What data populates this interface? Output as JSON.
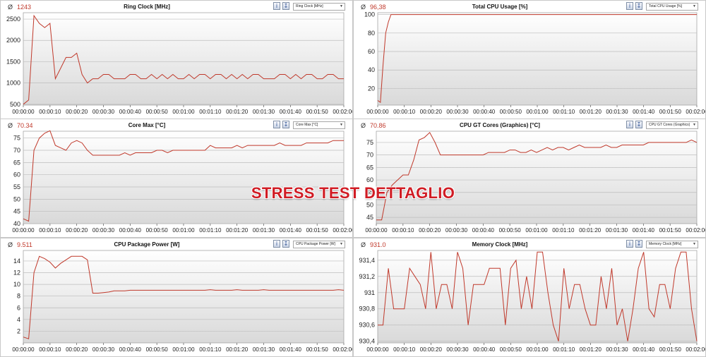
{
  "watermark": "STRESS TEST DETTAGLIO",
  "avg_symbol": "Ø",
  "x_ticks": [
    "00:00:00",
    "00:00:10",
    "00:00:20",
    "00:00:30",
    "00:00:40",
    "00:00:50",
    "00:01:00",
    "00:01:10",
    "00:01:20",
    "00:01:30",
    "00:01:40",
    "00:01:50",
    "00:02:00"
  ],
  "colors": {
    "line": "#c0392b",
    "grid": "#bdbdbd",
    "avg": "#c0392b"
  },
  "icons": [
    "info-icon",
    "export-icon",
    "dropdown-arrow-icon"
  ],
  "panels": [
    {
      "title": "Ring Clock [MHz]",
      "avg": "1243",
      "select": "Ring Clock [MHz]"
    },
    {
      "title": "Total CPU Usage [%]",
      "avg": "96,38",
      "select": "Total CPU Usage [%]"
    },
    {
      "title": "Core Max [°C]",
      "avg": "70.34",
      "select": "Core Max [°C]"
    },
    {
      "title": "CPU GT Cores (Graphics) [°C]",
      "avg": "70.86",
      "select": "CPU GT Cores (Graphics)"
    },
    {
      "title": "CPU Package Power [W]",
      "avg": "9.511",
      "select": "CPU Package Power [W]"
    },
    {
      "title": "Memory Clock [MHz]",
      "avg": "931.0",
      "select": "Memory Clock [MHz]"
    }
  ],
  "chart_data": [
    {
      "type": "line",
      "title": "Ring Clock [MHz]",
      "ylim": [
        480,
        2650
      ],
      "yticks": [
        500,
        1000,
        1500,
        2000,
        2500
      ],
      "ytick_labels": [
        "500",
        "1000",
        "1500",
        "2000",
        "2500"
      ],
      "xlim": [
        0,
        120
      ],
      "x": [
        0,
        2,
        4,
        6,
        8,
        10,
        12,
        14,
        16,
        18,
        20,
        22,
        24,
        26,
        28,
        30,
        32,
        34,
        36,
        38,
        40,
        42,
        44,
        46,
        48,
        50,
        52,
        54,
        56,
        58,
        60,
        62,
        64,
        66,
        68,
        70,
        72,
        74,
        76,
        78,
        80,
        82,
        84,
        86,
        88,
        90,
        92,
        94,
        96,
        98,
        100,
        102,
        104,
        106,
        108,
        110,
        112,
        114,
        116,
        118,
        120
      ],
      "y": [
        500,
        600,
        2580,
        2400,
        2300,
        2400,
        1100,
        1350,
        1600,
        1600,
        1700,
        1200,
        1000,
        1100,
        1100,
        1200,
        1200,
        1100,
        1100,
        1100,
        1200,
        1200,
        1100,
        1100,
        1200,
        1100,
        1200,
        1100,
        1200,
        1100,
        1100,
        1200,
        1100,
        1200,
        1200,
        1100,
        1200,
        1200,
        1100,
        1200,
        1100,
        1200,
        1100,
        1200,
        1200,
        1100,
        1100,
        1100,
        1200,
        1200,
        1100,
        1200,
        1100,
        1200,
        1200,
        1100,
        1100,
        1200,
        1200,
        1100,
        1100
      ]
    },
    {
      "type": "line",
      "title": "Total CPU Usage [%]",
      "ylim": [
        2,
        102
      ],
      "yticks": [
        20,
        40,
        60,
        80,
        100
      ],
      "ytick_labels": [
        "20",
        "40",
        "60",
        "80",
        "100"
      ],
      "xlim": [
        0,
        120
      ],
      "x": [
        0,
        1,
        2,
        3,
        4,
        5,
        6,
        60,
        120
      ],
      "y": [
        7,
        5,
        45,
        80,
        92,
        100,
        100,
        100,
        100
      ]
    },
    {
      "type": "line",
      "title": "Core Max [°C]",
      "ylim": [
        40,
        77.8
      ],
      "yticks": [
        40,
        45,
        50,
        55,
        60,
        65,
        70,
        75
      ],
      "ytick_labels": [
        "40",
        "45",
        "50",
        "55",
        "60",
        "65",
        "70",
        "75"
      ],
      "xlim": [
        0,
        120
      ],
      "x": [
        0,
        2,
        4,
        6,
        8,
        10,
        12,
        14,
        16,
        18,
        20,
        22,
        24,
        26,
        28,
        30,
        32,
        34,
        36,
        38,
        40,
        42,
        44,
        46,
        48,
        50,
        52,
        54,
        56,
        58,
        60,
        62,
        64,
        66,
        68,
        70,
        72,
        74,
        76,
        78,
        80,
        82,
        84,
        86,
        88,
        90,
        92,
        94,
        96,
        98,
        100,
        102,
        104,
        106,
        108,
        110,
        112,
        114,
        116,
        118,
        120
      ],
      "y": [
        42,
        41,
        70,
        75,
        77,
        78,
        72,
        71,
        70,
        73,
        74,
        73,
        70,
        68,
        68,
        68,
        68,
        68,
        68,
        69,
        68,
        69,
        69,
        69,
        69,
        70,
        70,
        69,
        70,
        70,
        70,
        70,
        70,
        70,
        70,
        72,
        71,
        71,
        71,
        71,
        72,
        71,
        72,
        72,
        72,
        72,
        72,
        72,
        73,
        72,
        72,
        72,
        72,
        73,
        73,
        73,
        73,
        73,
        74,
        74,
        74
      ]
    },
    {
      "type": "line",
      "title": "CPU GT Cores (Graphics) [°C]",
      "ylim": [
        42.5,
        79.5
      ],
      "yticks": [
        45,
        50,
        55,
        60,
        65,
        70,
        75
      ],
      "ytick_labels": [
        "45",
        "50",
        "55",
        "60",
        "65",
        "70",
        "75"
      ],
      "xlim": [
        0,
        120
      ],
      "x": [
        0,
        2,
        4,
        6,
        8,
        10,
        12,
        14,
        16,
        18,
        20,
        22,
        24,
        26,
        28,
        30,
        32,
        34,
        36,
        38,
        40,
        42,
        44,
        46,
        48,
        50,
        52,
        54,
        56,
        58,
        60,
        62,
        64,
        66,
        68,
        70,
        72,
        74,
        76,
        78,
        80,
        82,
        84,
        86,
        88,
        90,
        92,
        94,
        96,
        98,
        100,
        102,
        104,
        106,
        108,
        110,
        112,
        114,
        116,
        118,
        120
      ],
      "y": [
        44,
        44,
        55,
        58,
        60,
        62,
        62,
        68,
        76,
        77,
        79,
        75,
        70,
        70,
        70,
        70,
        70,
        70,
        70,
        70,
        70,
        71,
        71,
        71,
        71,
        72,
        72,
        71,
        71,
        72,
        71,
        72,
        73,
        72,
        73,
        73,
        72,
        73,
        74,
        73,
        73,
        73,
        73,
        74,
        73,
        73,
        74,
        74,
        74,
        74,
        74,
        75,
        75,
        75,
        75,
        75,
        75,
        75,
        75,
        76,
        75
      ]
    },
    {
      "type": "line",
      "title": "CPU Package Power [W]",
      "ylim": [
        0,
        15.8
      ],
      "yticks": [
        2,
        4,
        6,
        8,
        10,
        12,
        14
      ],
      "ytick_labels": [
        "2",
        "4",
        "6",
        "8",
        "10",
        "12",
        "14"
      ],
      "xlim": [
        0,
        120
      ],
      "x": [
        0,
        2,
        4,
        6,
        8,
        10,
        12,
        14,
        16,
        18,
        20,
        22,
        24,
        26,
        28,
        30,
        32,
        34,
        36,
        38,
        40,
        42,
        44,
        46,
        48,
        50,
        52,
        54,
        56,
        58,
        60,
        62,
        64,
        66,
        68,
        70,
        72,
        74,
        76,
        78,
        80,
        82,
        84,
        86,
        88,
        90,
        92,
        94,
        96,
        98,
        100,
        102,
        104,
        106,
        108,
        110,
        112,
        114,
        116,
        118,
        120
      ],
      "y": [
        1,
        0.7,
        12,
        14.8,
        14.4,
        13.8,
        12.8,
        13.6,
        14.2,
        14.8,
        14.8,
        14.8,
        14.2,
        8.5,
        8.5,
        8.6,
        8.7,
        8.9,
        8.9,
        8.9,
        9,
        9,
        9,
        9,
        9,
        9,
        9,
        9,
        9,
        9,
        9,
        9,
        9,
        9,
        9,
        9.1,
        9,
        9,
        9,
        9,
        9.1,
        9,
        9,
        9,
        9,
        9.1,
        9,
        9,
        9,
        9,
        9,
        9,
        9,
        9,
        9,
        9,
        9,
        9,
        9,
        9.1,
        9
      ]
    },
    {
      "type": "line",
      "title": "Memory Clock [MHz]",
      "ylim": [
        930.38,
        931.52
      ],
      "yticks": [
        930.4,
        930.6,
        930.8,
        931,
        931.2,
        931.4
      ],
      "ytick_labels": [
        "930,4",
        "930,6",
        "930,8",
        "931",
        "931,2",
        "931,4"
      ],
      "xlim": [
        0,
        120
      ],
      "x": [
        0,
        2,
        4,
        6,
        8,
        10,
        12,
        14,
        16,
        18,
        20,
        22,
        24,
        26,
        28,
        30,
        32,
        34,
        36,
        38,
        40,
        42,
        44,
        46,
        48,
        50,
        52,
        54,
        56,
        58,
        60,
        62,
        64,
        66,
        68,
        70,
        72,
        74,
        76,
        78,
        80,
        82,
        84,
        86,
        88,
        90,
        92,
        94,
        96,
        98,
        100,
        102,
        104,
        106,
        108,
        110,
        112,
        114,
        116,
        118,
        120
      ],
      "y": [
        930.6,
        930.6,
        931.3,
        930.8,
        930.8,
        930.8,
        931.3,
        931.2,
        931.1,
        930.8,
        931.5,
        930.8,
        931.1,
        931.1,
        930.8,
        931.5,
        931.3,
        930.6,
        931.1,
        931.1,
        931.1,
        931.3,
        931.3,
        931.3,
        930.6,
        931.3,
        931.4,
        930.8,
        931.2,
        930.8,
        931.5,
        931.5,
        931.0,
        930.6,
        930.4,
        931.3,
        930.8,
        931.1,
        931.1,
        930.8,
        930.6,
        930.6,
        931.2,
        930.8,
        931.3,
        930.6,
        930.8,
        930.4,
        930.8,
        931.3,
        931.5,
        930.8,
        930.7,
        931.1,
        931.1,
        930.8,
        931.3,
        931.5,
        931.5,
        930.8,
        930.4
      ]
    }
  ]
}
